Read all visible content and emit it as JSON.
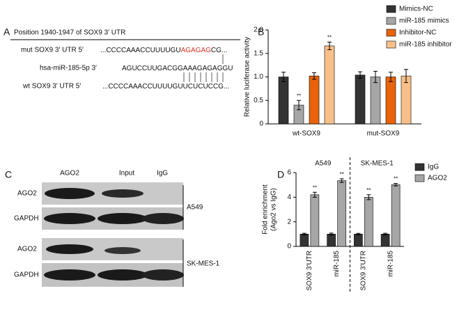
{
  "panel_a": {
    "panel_label": "A",
    "title": "Position 1940-1947 of SOX9 3′ UTR",
    "rows": [
      {
        "label": "mut SOX9 3′ UTR 5′",
        "sequence": [
          {
            "text": "...CCCCAAACCUUUUGU"
          },
          {
            "text": "AGAGAG",
            "color": "#e0302a"
          },
          {
            "text": "CG..."
          }
        ]
      },
      {
        "label": "hsa-miR-185-5p 3′",
        "sequence": [
          {
            "text": "AGUCCUUGACGGAAAGAGAGGU"
          }
        ]
      },
      {
        "label": "wt SOX9 3′ UTR 5′",
        "sequence": [
          {
            "text": "...CCCCAAACCUUUUGUUCUCUCCG..."
          }
        ]
      }
    ]
  },
  "panel_c": {
    "panel_label": "C",
    "columns": [
      "AGO2",
      "Input",
      "IgG"
    ],
    "groups": [
      {
        "name": "A549",
        "rows": [
          "AGO2",
          "GAPDH"
        ]
      },
      {
        "name": "SK-MES-1",
        "rows": [
          "AGO2",
          "GAPDH"
        ]
      }
    ]
  },
  "chart_data": [
    {
      "type": "bar",
      "panel_label": "B",
      "ylabel": "Relative luciferase activity",
      "categories": [
        "wt-SOX9",
        "mut-SOX9"
      ],
      "ylim": [
        0,
        2
      ],
      "yticks": [
        0,
        0.5,
        {
          "value": 1,
          "label": "1.0"
        },
        1.5,
        {
          "value": 2,
          "label": "2.0"
        }
      ],
      "series": [
        {
          "name": "Mimics-NC",
          "color": "#333333",
          "values": [
            1.0,
            1.04
          ],
          "errors": [
            0.1,
            0.07
          ],
          "significance": [
            null,
            null
          ]
        },
        {
          "name": "miR-185 mimics",
          "color": "#a6a6a6",
          "values": [
            0.4,
            1.0
          ],
          "errors": [
            0.1,
            0.12
          ],
          "significance": [
            "**",
            null
          ]
        },
        {
          "name": "Inhibitor-NC",
          "color": "#e8630a",
          "values": [
            1.02,
            1.0
          ],
          "errors": [
            0.07,
            0.1
          ],
          "significance": [
            null,
            null
          ]
        },
        {
          "name": "miR-185 inhibitor",
          "color": "#f7c08a",
          "values": [
            1.66,
            1.02
          ],
          "errors": [
            0.08,
            0.14
          ],
          "significance": [
            "**",
            null
          ]
        }
      ]
    },
    {
      "type": "bar",
      "panel_label": "D",
      "ylabel": [
        "Fold enrichment",
        "(Ago2 vs IgG)"
      ],
      "categories": [
        "SOX9 3'UTR",
        "miR-185",
        "SOX9 3'UTR",
        "miR-185"
      ],
      "group_labels": [
        "A549",
        "SK-MES-1"
      ],
      "ylim": [
        0,
        6
      ],
      "yticks": [
        0,
        2,
        4,
        6
      ],
      "series": [
        {
          "name": "IgG",
          "color": "#333333",
          "values": [
            1.0,
            1.0,
            1.0,
            1.0
          ],
          "errors": [
            0.07,
            0.08,
            0.06,
            0.07
          ],
          "significance": [
            null,
            null,
            null,
            null
          ]
        },
        {
          "name": "AGO2",
          "color": "#a6a6a6",
          "values": [
            4.2,
            5.35,
            4.0,
            5.02
          ],
          "errors": [
            0.2,
            0.15,
            0.2,
            0.1
          ],
          "significance": [
            "**",
            "**",
            "**",
            "**"
          ]
        }
      ]
    }
  ]
}
